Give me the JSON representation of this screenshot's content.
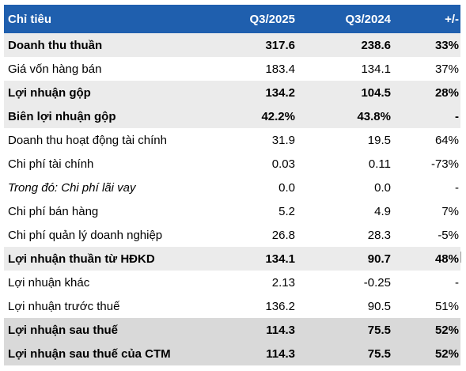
{
  "header": {
    "col0": "Chỉ tiêu",
    "col1": "Q3/2025",
    "col2": "Q3/2024",
    "col3": "+/-"
  },
  "colors": {
    "header_bg": "#1f5fae",
    "shade": "#ebebeb",
    "shade_dark": "#d9d9d9"
  },
  "rows": [
    {
      "label": "Doanh thu thuần",
      "q3_2025": "317.6",
      "q3_2024": "238.6",
      "change": "33%"
    },
    {
      "label": "Giá vốn hàng bán",
      "q3_2025": "183.4",
      "q3_2024": "134.1",
      "change": "37%"
    },
    {
      "label": "Lợi nhuận gộp",
      "q3_2025": "134.2",
      "q3_2024": "104.5",
      "change": "28%"
    },
    {
      "label": "Biên lợi nhuận gộp",
      "q3_2025": "42.2%",
      "q3_2024": "43.8%",
      "change": "-"
    },
    {
      "label": "Doanh thu hoạt động tài chính",
      "q3_2025": "31.9",
      "q3_2024": "19.5",
      "change": "64%"
    },
    {
      "label": "Chi phí tài chính",
      "q3_2025": "0.03",
      "q3_2024": "0.11",
      "change": "-73%"
    },
    {
      "label": "Trong đó: Chi phí lãi vay",
      "q3_2025": "0.0",
      "q3_2024": "0.0",
      "change": "-"
    },
    {
      "label": "Chi phí bán hàng",
      "q3_2025": "5.2",
      "q3_2024": "4.9",
      "change": "7%"
    },
    {
      "label": "Chi phí quản lý doanh nghiệp",
      "q3_2025": "26.8",
      "q3_2024": "28.3",
      "change": "-5%"
    },
    {
      "label": "Lợi nhuận thuần từ HĐKD",
      "q3_2025": "134.1",
      "q3_2024": "90.7",
      "change": "48%"
    },
    {
      "label": "Lợi nhuận khác",
      "q3_2025": "2.13",
      "q3_2024": "-0.25",
      "change": "-"
    },
    {
      "label": "Lợi nhuận trước thuế",
      "q3_2025": "136.2",
      "q3_2024": "90.5",
      "change": "51%"
    },
    {
      "label": "Lợi nhuận sau thuế",
      "q3_2025": "114.3",
      "q3_2024": "75.5",
      "change": "52%"
    },
    {
      "label": "Lợi nhuận sau thuế của CTM",
      "q3_2025": "114.3",
      "q3_2024": "75.5",
      "change": "52%"
    }
  ]
}
